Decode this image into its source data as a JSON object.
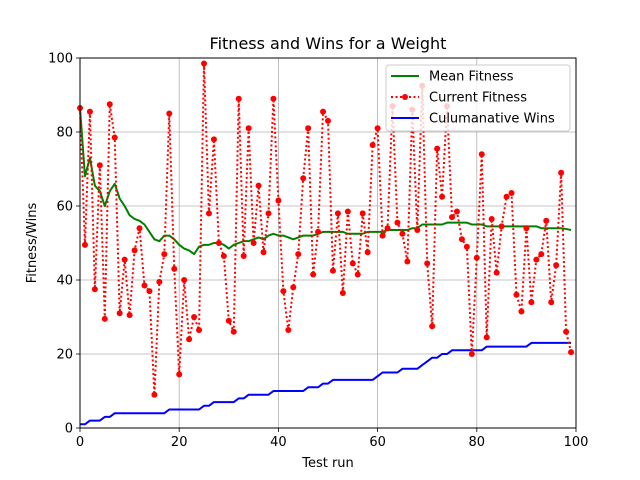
{
  "chart_data": {
    "type": "line",
    "title": "Fitness and Wins for a Weight",
    "xlabel": "Test run",
    "ylabel": "Fitness/Wins",
    "xlim": [
      0,
      100
    ],
    "ylim": [
      0,
      100
    ],
    "xticks": [
      0,
      20,
      40,
      60,
      80,
      100
    ],
    "yticks": [
      0,
      20,
      40,
      60,
      80,
      100
    ],
    "grid": true,
    "legend_position": "top-right",
    "x": [
      0,
      1,
      2,
      3,
      4,
      5,
      6,
      7,
      8,
      9,
      10,
      11,
      12,
      13,
      14,
      15,
      16,
      17,
      18,
      19,
      20,
      21,
      22,
      23,
      24,
      25,
      26,
      27,
      28,
      29,
      30,
      31,
      32,
      33,
      34,
      35,
      36,
      37,
      38,
      39,
      40,
      41,
      42,
      43,
      44,
      45,
      46,
      47,
      48,
      49,
      50,
      51,
      52,
      53,
      54,
      55,
      56,
      57,
      58,
      59,
      60,
      61,
      62,
      63,
      64,
      65,
      66,
      67,
      68,
      69,
      70,
      71,
      72,
      73,
      74,
      75,
      76,
      77,
      78,
      79,
      80,
      81,
      82,
      83,
      84,
      85,
      86,
      87,
      88,
      89,
      90,
      91,
      92,
      93,
      94,
      95,
      96,
      97,
      98,
      99
    ],
    "series": [
      {
        "name": "Mean Fitness",
        "color": "#008000",
        "style": "solid",
        "marker": "none",
        "values": [
          86.5,
          68,
          73,
          65.5,
          64,
          60,
          64,
          66,
          62,
          60,
          57.5,
          56.5,
          56,
          55,
          53,
          51,
          50.5,
          52,
          52,
          51,
          49.5,
          48.5,
          48,
          47,
          49,
          49.5,
          49.5,
          50,
          50,
          49.5,
          48.5,
          49.5,
          50,
          50.5,
          50.5,
          51,
          51.5,
          51,
          52,
          52.5,
          52,
          52,
          51.5,
          51,
          51.5,
          52,
          52,
          52,
          52.5,
          53,
          53,
          53,
          53,
          53,
          52.5,
          52.5,
          52.5,
          52.5,
          53,
          53,
          53,
          53,
          53.5,
          53.5,
          53.5,
          53.5,
          53.5,
          54,
          54,
          55,
          55,
          55,
          55,
          55,
          55.5,
          55.5,
          55.5,
          55.5,
          55.5,
          55,
          55,
          55,
          54.5,
          54.5,
          54.5,
          54.5,
          54.5,
          54.5,
          54.5,
          54.5,
          54.5,
          54.5,
          54.5,
          54,
          54,
          54,
          54,
          54,
          53.8,
          53.5
        ]
      },
      {
        "name": "Current Fitness",
        "color": "#ff0000",
        "style": "dotted",
        "marker": "circle",
        "values": [
          86.5,
          49.5,
          85.5,
          37.5,
          71,
          29.5,
          87.5,
          78.5,
          31,
          45.5,
          30.5,
          48,
          54,
          38.5,
          37,
          9,
          39.5,
          47,
          85,
          43,
          14.5,
          40,
          24,
          30,
          26.5,
          98.5,
          58,
          78,
          50,
          46.5,
          29,
          26,
          89,
          46.5,
          81,
          50,
          65.5,
          47.5,
          58,
          89,
          61.5,
          37,
          26.5,
          38,
          47,
          67.5,
          81,
          41.5,
          53,
          85.5,
          83,
          42.5,
          58,
          36.5,
          58.5,
          44.5,
          41.5,
          58,
          47.5,
          76.5,
          81,
          52,
          54,
          87,
          55.5,
          52.5,
          45,
          86,
          53.5,
          92.5,
          44.5,
          27.5,
          75.5,
          62.5,
          87,
          57,
          58.5,
          51,
          49,
          20,
          46,
          74,
          24.5,
          56.5,
          42,
          54.5,
          62.5,
          63.5,
          36,
          31.5,
          54,
          34,
          45.5,
          47,
          56,
          34,
          44,
          69,
          26,
          20.5
        ]
      },
      {
        "name": "Culumanative Wins",
        "color": "#0000ff",
        "style": "solid",
        "marker": "none",
        "values": [
          1,
          1,
          2,
          2,
          2,
          3,
          3,
          4,
          4,
          4,
          4,
          4,
          4,
          4,
          4,
          4,
          4,
          4,
          5,
          5,
          5,
          5,
          5,
          5,
          5,
          6,
          6,
          7,
          7,
          7,
          7,
          7,
          8,
          8,
          9,
          9,
          9,
          9,
          9,
          10,
          10,
          10,
          10,
          10,
          10,
          10,
          11,
          11,
          11,
          12,
          12,
          13,
          13,
          13,
          13,
          13,
          13,
          13,
          13,
          13,
          14,
          15,
          15,
          15,
          15,
          16,
          16,
          16,
          16,
          17,
          18,
          19,
          19,
          20,
          20,
          21,
          21,
          21,
          21,
          21,
          21,
          21,
          22,
          22,
          22,
          22,
          22,
          22,
          22,
          22,
          22,
          23,
          23,
          23,
          23,
          23,
          23,
          23,
          23,
          23
        ]
      }
    ]
  }
}
